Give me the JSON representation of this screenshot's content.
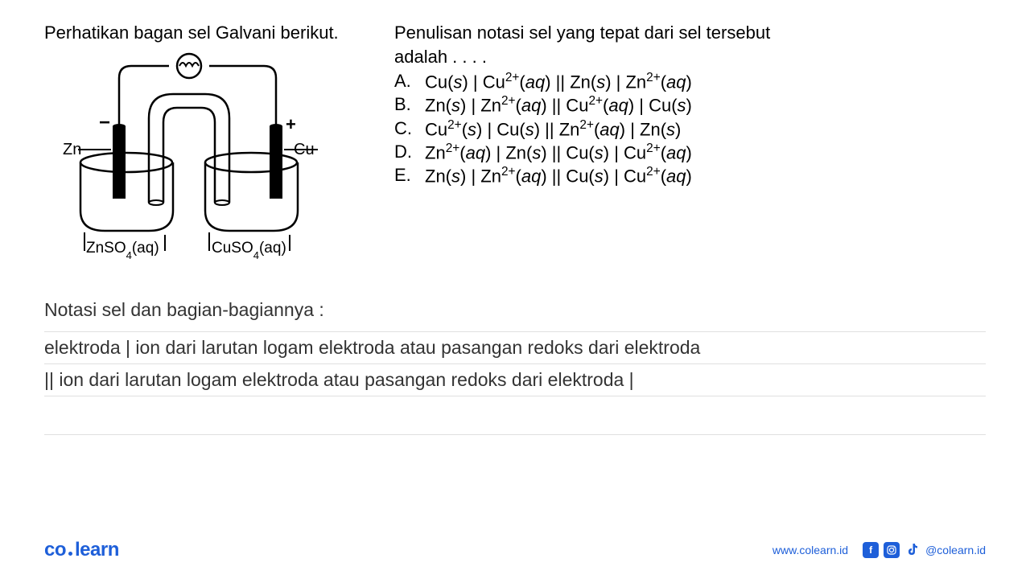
{
  "question": {
    "intro": "Perhatikan bagan sel Galvani berikut.",
    "prompt_line1": "Penulisan notasi sel yang tepat dari sel tersebut",
    "prompt_line2": "adalah . . . .",
    "intro_fontsize": 22
  },
  "diagram": {
    "labels": {
      "left_electrode": "Zn",
      "right_electrode": "Cu",
      "left_solution": "ZnSO₄(aq)",
      "right_solution": "CuSO₄(aq)",
      "negative": "−",
      "positive": "+"
    },
    "colors": {
      "stroke": "#000000",
      "electrode_fill": "#000000",
      "background": "#ffffff"
    },
    "stroke_width": 2
  },
  "options": {
    "fontsize": 22,
    "items": [
      {
        "letter": "A.",
        "html": "Cu(<i>s</i>) | Cu<sup>2+</sup>(<i>aq</i>) || Zn(<i>s</i>) | Zn<sup>2+</sup>(<i>aq</i>)"
      },
      {
        "letter": "B.",
        "html": "Zn(<i>s</i>) | Zn<sup>2+</sup>(<i>aq</i>) || Cu<sup>2+</sup>(<i>aq</i>) | Cu(<i>s</i>)"
      },
      {
        "letter": "C.",
        "html": "Cu<sup>2+</sup>(<i>s</i>) | Cu(<i>s</i>) || Zn<sup>2+</sup>(<i>aq</i>) | Zn(<i>s</i>)"
      },
      {
        "letter": "D.",
        "html": "Zn<sup>2+</sup>(<i>aq</i>) | Zn(<i>s</i>) || Cu(<i>s</i>) | Cu<sup>2+</sup>(<i>aq</i>)"
      },
      {
        "letter": "E.",
        "html": "Zn(<i>s</i>) | Zn<sup>2+</sup>(<i>aq</i>) || Cu(<i>s</i>) | Cu<sup>2+</sup>(<i>aq</i>)"
      }
    ]
  },
  "explanation": {
    "title": "Notasi sel dan bagian-bagiannya :",
    "line1": "elektroda | ion dari larutan logam elektroda atau pasangan redoks dari elektroda",
    "line2": " || ion dari larutan logam elektroda atau pasangan redoks dari elektroda |",
    "fontsize": 23,
    "line_color": "#e0e0e0"
  },
  "footer": {
    "logo": {
      "co": "co",
      "learn": "learn",
      "color": "#1e5fd9",
      "fontsize": 24
    },
    "url": "www.colearn.id",
    "handle": "@colearn.id",
    "url_color": "#1e5fd9",
    "icon_bg": "#1e5fd9"
  }
}
